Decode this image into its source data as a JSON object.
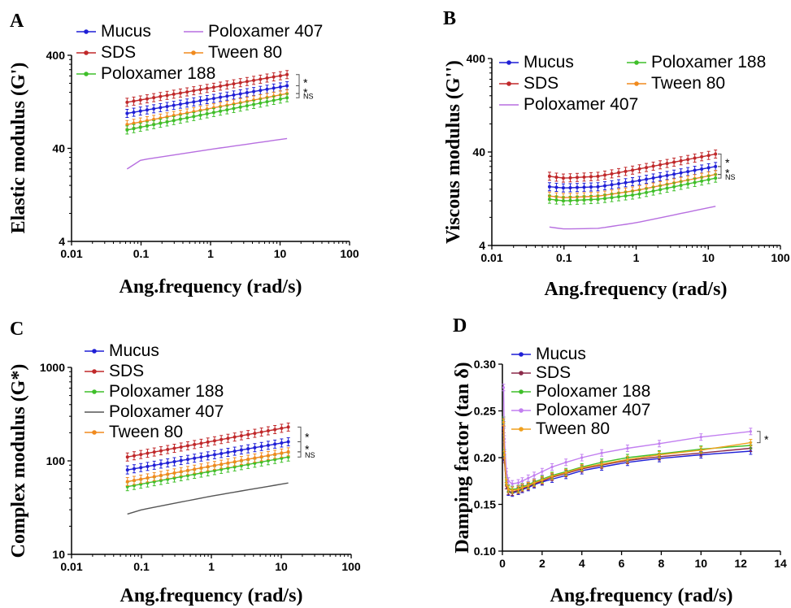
{
  "chart_data": [
    {
      "type": "line",
      "panel_label": "A",
      "xlabel": "Ang.frequency (rad/s)",
      "ylabel": "Elastic modulus  (G')",
      "xscale": "log",
      "yscale": "log",
      "xlim": [
        0.01,
        100
      ],
      "ylim": [
        4,
        400
      ],
      "xticks": [
        "0.01",
        "0.1",
        "1",
        "10",
        "100"
      ],
      "yticks": [
        "4",
        "40",
        "400"
      ],
      "legend_columns": 2,
      "legend_order": [
        "Mucus",
        "Poloxamer 407",
        "SDS",
        "Tween 80",
        "Poloxamer 188"
      ],
      "x_range": [
        0.063,
        12.6
      ],
      "points": 25,
      "error_bars": true,
      "series": [
        {
          "name": "Mucus",
          "color": "#1f1fd6",
          "values": [
            [
              0.063,
              95
            ],
            [
              12.6,
              188
            ]
          ]
        },
        {
          "name": "SDS",
          "color": "#c0282a",
          "values": [
            [
              0.063,
              125
            ],
            [
              12.6,
              248
            ]
          ]
        },
        {
          "name": "Tween 80",
          "color": "#f08a1e",
          "values": [
            [
              0.063,
              72
            ],
            [
              12.6,
              155
            ]
          ]
        },
        {
          "name": "Poloxamer 188",
          "color": "#3fbf2a",
          "values": [
            [
              0.063,
              63
            ],
            [
              12.6,
              140
            ]
          ]
        },
        {
          "name": "Poloxamer 407",
          "color": "#b76fe0",
          "values": [
            [
              0.063,
              24
            ],
            [
              0.1,
              30
            ],
            [
              1,
              39
            ],
            [
              12.6,
              51
            ]
          ]
        }
      ],
      "significance": [
        "*",
        "*",
        "NS"
      ]
    },
    {
      "type": "line",
      "panel_label": "B",
      "xlabel": "Ang.frequency (rad/s)",
      "ylabel": "Viscous modulus  (G'')",
      "xscale": "log",
      "yscale": "log",
      "xlim": [
        0.01,
        100
      ],
      "ylim": [
        4,
        400
      ],
      "xticks": [
        "0.01",
        "0.1",
        "1",
        "10",
        "100"
      ],
      "yticks": [
        "4",
        "40",
        "400"
      ],
      "legend_columns": 2,
      "legend_order": [
        "Mucus",
        "Poloxamer 188",
        "SDS",
        "Tween 80",
        "Poloxamer 407"
      ],
      "x_range": [
        0.063,
        12.6
      ],
      "points": 25,
      "error_bars": true,
      "series": [
        {
          "name": "Mucus",
          "color": "#1f1fd6",
          "values": [
            [
              0.063,
              17
            ],
            [
              0.1,
              16.5
            ],
            [
              0.3,
              17
            ],
            [
              1,
              19.5
            ],
            [
              12.6,
              28
            ]
          ]
        },
        {
          "name": "SDS",
          "color": "#c0282a",
          "values": [
            [
              0.063,
              22
            ],
            [
              0.1,
              21
            ],
            [
              0.3,
              22
            ],
            [
              1,
              26
            ],
            [
              12.6,
              38
            ]
          ]
        },
        {
          "name": "Tween 80",
          "color": "#f08a1e",
          "values": [
            [
              0.063,
              13.5
            ],
            [
              0.1,
              13
            ],
            [
              0.3,
              13.5
            ],
            [
              1,
              15.5
            ],
            [
              12.6,
              23
            ]
          ]
        },
        {
          "name": "Poloxamer 188",
          "color": "#3fbf2a",
          "values": [
            [
              0.063,
              12.5
            ],
            [
              0.1,
              12
            ],
            [
              0.3,
              12.5
            ],
            [
              1,
              14
            ],
            [
              12.6,
              21
            ]
          ]
        },
        {
          "name": "Poloxamer 407",
          "color": "#b76fe0",
          "values": [
            [
              0.063,
              6.3
            ],
            [
              0.1,
              6
            ],
            [
              0.3,
              6.1
            ],
            [
              1,
              7
            ],
            [
              12.6,
              10.5
            ]
          ]
        }
      ],
      "significance": [
        "*",
        "*",
        "NS"
      ]
    },
    {
      "type": "line",
      "panel_label": "C",
      "xlabel": "Ang.frequency (rad/s)",
      "ylabel": "Complex modulus  (G*)",
      "xscale": "log",
      "yscale": "log",
      "xlim": [
        0.01,
        100
      ],
      "ylim": [
        10,
        1000
      ],
      "xticks": [
        "0.01",
        "0.1",
        "1",
        "10",
        "100"
      ],
      "yticks": [
        "10",
        "100",
        "1000"
      ],
      "legend_columns": 1,
      "legend_order": [
        "Mucus",
        "SDS",
        "Poloxamer 188",
        "Poloxamer 407",
        "Tween 80"
      ],
      "x_range": [
        0.063,
        12.6
      ],
      "points": 25,
      "error_bars": true,
      "series": [
        {
          "name": "Mucus",
          "color": "#1f1fd6",
          "values": [
            [
              0.063,
              80
            ],
            [
              12.6,
              160
            ]
          ]
        },
        {
          "name": "SDS",
          "color": "#c0282a",
          "values": [
            [
              0.063,
              110
            ],
            [
              12.6,
              230
            ]
          ]
        },
        {
          "name": "Poloxamer 188",
          "color": "#3fbf2a",
          "values": [
            [
              0.063,
              53
            ],
            [
              12.6,
              110
            ]
          ]
        },
        {
          "name": "Poloxamer 407",
          "color": "#555555",
          "values": [
            [
              0.063,
              27
            ],
            [
              0.1,
              30
            ],
            [
              1,
              42
            ],
            [
              12.6,
              58
            ]
          ]
        },
        {
          "name": "Tween 80",
          "color": "#f08a1e",
          "values": [
            [
              0.063,
              60
            ],
            [
              12.6,
              125
            ]
          ]
        }
      ],
      "significance": [
        "*",
        "*",
        "NS"
      ]
    },
    {
      "type": "line",
      "panel_label": "D",
      "xlabel": "Ang.frequency (rad/s)",
      "ylabel": "Damping factor  (tan δ)",
      "xscale": "linear",
      "yscale": "linear",
      "xlim": [
        0,
        14
      ],
      "ylim": [
        0.1,
        0.3
      ],
      "xticks": [
        "0",
        "2",
        "4",
        "6",
        "8",
        "10",
        "12",
        "14"
      ],
      "yticks": [
        "0.10",
        "0.15",
        "0.20",
        "0.25",
        "0.30"
      ],
      "legend_columns": 1,
      "legend_order": [
        "Mucus",
        "SDS",
        "Poloxamer 188",
        "Poloxamer 407",
        "Tween 80"
      ],
      "error_bars": true,
      "series": [
        {
          "name": "Mucus",
          "color": "#1f1fd6",
          "values": [
            [
              0.06,
              0.235
            ],
            [
              0.1,
              0.2
            ],
            [
              0.2,
              0.17
            ],
            [
              0.3,
              0.163
            ],
            [
              0.5,
              0.162
            ],
            [
              0.8,
              0.164
            ],
            [
              1.0,
              0.166
            ],
            [
              1.3,
              0.168
            ],
            [
              1.6,
              0.171
            ],
            [
              2.0,
              0.174
            ],
            [
              2.5,
              0.177
            ],
            [
              3.2,
              0.181
            ],
            [
              4.0,
              0.186
            ],
            [
              5.0,
              0.19
            ],
            [
              6.3,
              0.195
            ],
            [
              7.9,
              0.199
            ],
            [
              10.0,
              0.203
            ],
            [
              12.5,
              0.207
            ]
          ]
        },
        {
          "name": "SDS",
          "color": "#8b2a4a",
          "values": [
            [
              0.06,
              0.23
            ],
            [
              0.1,
              0.198
            ],
            [
              0.2,
              0.17
            ],
            [
              0.3,
              0.164
            ],
            [
              0.5,
              0.163
            ],
            [
              0.8,
              0.165
            ],
            [
              1.0,
              0.167
            ],
            [
              1.3,
              0.169
            ],
            [
              1.6,
              0.172
            ],
            [
              2.0,
              0.175
            ],
            [
              2.5,
              0.179
            ],
            [
              3.2,
              0.183
            ],
            [
              4.0,
              0.188
            ],
            [
              5.0,
              0.192
            ],
            [
              6.3,
              0.197
            ],
            [
              7.9,
              0.201
            ],
            [
              10.0,
              0.205
            ],
            [
              12.5,
              0.21
            ]
          ]
        },
        {
          "name": "Poloxamer 188",
          "color": "#3fbf2a",
          "values": [
            [
              0.06,
              0.24
            ],
            [
              0.1,
              0.205
            ],
            [
              0.2,
              0.175
            ],
            [
              0.3,
              0.167
            ],
            [
              0.5,
              0.166
            ],
            [
              0.8,
              0.167
            ],
            [
              1.0,
              0.169
            ],
            [
              1.3,
              0.171
            ],
            [
              1.6,
              0.174
            ],
            [
              2.0,
              0.177
            ],
            [
              2.5,
              0.181
            ],
            [
              3.2,
              0.185
            ],
            [
              4.0,
              0.19
            ],
            [
              5.0,
              0.195
            ],
            [
              6.3,
              0.2
            ],
            [
              7.9,
              0.204
            ],
            [
              10.0,
              0.209
            ],
            [
              12.5,
              0.213
            ]
          ]
        },
        {
          "name": "Poloxamer 407",
          "color": "#c27ff0",
          "values": [
            [
              0.06,
              0.275
            ],
            [
              0.1,
              0.22
            ],
            [
              0.2,
              0.185
            ],
            [
              0.3,
              0.175
            ],
            [
              0.5,
              0.172
            ],
            [
              0.8,
              0.173
            ],
            [
              1.0,
              0.175
            ],
            [
              1.3,
              0.178
            ],
            [
              1.6,
              0.181
            ],
            [
              2.0,
              0.185
            ],
            [
              2.5,
              0.19
            ],
            [
              3.2,
              0.195
            ],
            [
              4.0,
              0.2
            ],
            [
              5.0,
              0.205
            ],
            [
              6.3,
              0.21
            ],
            [
              7.9,
              0.215
            ],
            [
              10.0,
              0.222
            ],
            [
              12.5,
              0.228
            ]
          ]
        },
        {
          "name": "Tween 80",
          "color": "#f0a01e",
          "values": [
            [
              0.06,
              0.238
            ],
            [
              0.1,
              0.203
            ],
            [
              0.2,
              0.173
            ],
            [
              0.3,
              0.166
            ],
            [
              0.5,
              0.165
            ],
            [
              0.8,
              0.166
            ],
            [
              1.0,
              0.168
            ],
            [
              1.3,
              0.17
            ],
            [
              1.6,
              0.173
            ],
            [
              2.0,
              0.176
            ],
            [
              2.5,
              0.18
            ],
            [
              3.2,
              0.184
            ],
            [
              4.0,
              0.189
            ],
            [
              5.0,
              0.193
            ],
            [
              6.3,
              0.198
            ],
            [
              7.9,
              0.203
            ],
            [
              10.0,
              0.208
            ],
            [
              12.5,
              0.216
            ]
          ]
        }
      ],
      "significance": [
        "*"
      ]
    }
  ]
}
